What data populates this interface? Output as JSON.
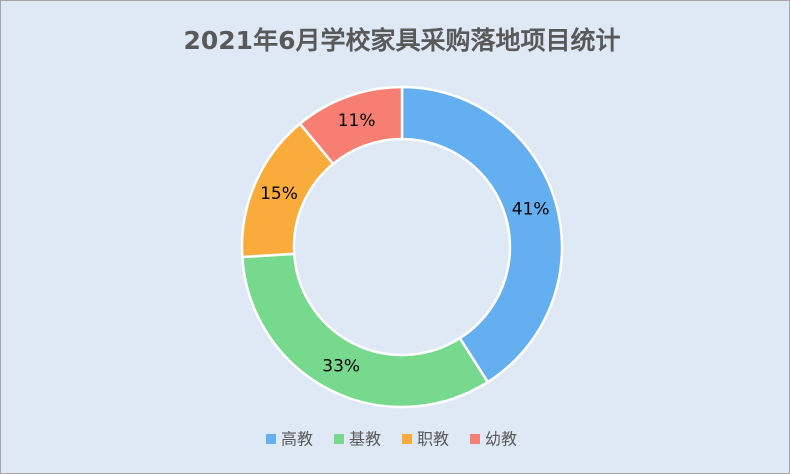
{
  "chart_data": {
    "type": "donut",
    "title": "2021年6月学校家具采购落地项目统计",
    "categories": [
      "高教",
      "基教",
      "职教",
      "幼教"
    ],
    "values": [
      41,
      33,
      15,
      11
    ],
    "value_labels": [
      "41%",
      "33%",
      "15%",
      "11%"
    ],
    "colors": [
      "#63aff0",
      "#76d98d",
      "#f9ab3c",
      "#f77e72"
    ],
    "legend": "bottom"
  }
}
